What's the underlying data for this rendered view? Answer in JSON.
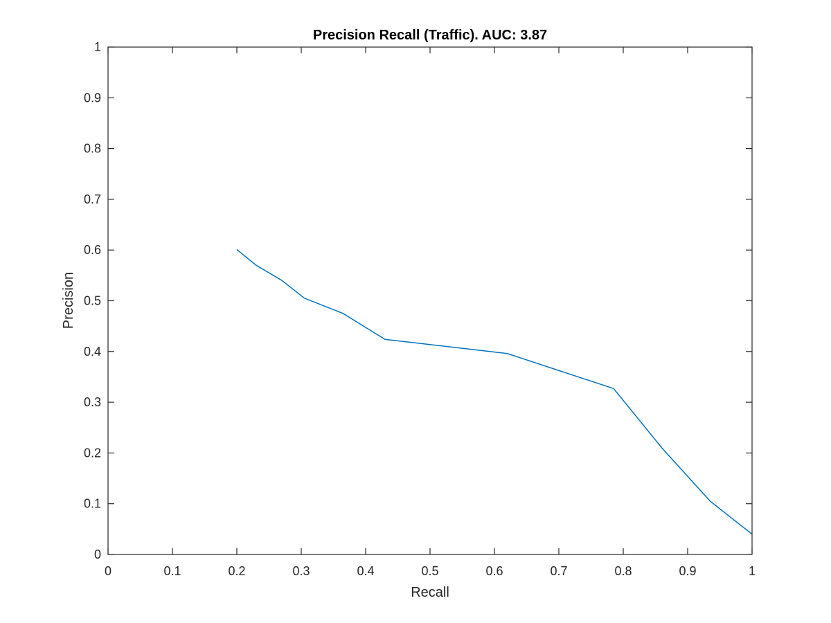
{
  "chart_data": {
    "type": "line",
    "title": "Precision Recall (Traffic). AUC: 3.87",
    "xlabel": "Recall",
    "ylabel": "Precision",
    "xlim": [
      0,
      1
    ],
    "ylim": [
      0,
      1
    ],
    "xticks": [
      0,
      0.1,
      0.2,
      0.3,
      0.4,
      0.5,
      0.6,
      0.7,
      0.8,
      0.9,
      1
    ],
    "yticks": [
      0,
      0.1,
      0.2,
      0.3,
      0.4,
      0.5,
      0.6,
      0.7,
      0.8,
      0.9,
      1
    ],
    "xtick_labels": [
      "0",
      "0.1",
      "0.2",
      "0.3",
      "0.4",
      "0.5",
      "0.6",
      "0.7",
      "0.8",
      "0.9",
      "1"
    ],
    "ytick_labels": [
      "0",
      "0.1",
      "0.2",
      "0.3",
      "0.4",
      "0.5",
      "0.6",
      "0.7",
      "0.8",
      "0.9",
      "1"
    ],
    "grid": false,
    "box": true,
    "series": [
      {
        "color": "#0072bd",
        "x": [
          0.2,
          0.23,
          0.27,
          0.305,
          0.365,
          0.43,
          0.62,
          0.785,
          0.86,
          0.935,
          1.0
        ],
        "y": [
          0.601,
          0.57,
          0.54,
          0.505,
          0.475,
          0.424,
          0.396,
          0.327,
          0.21,
          0.105,
          0.04
        ]
      }
    ]
  }
}
